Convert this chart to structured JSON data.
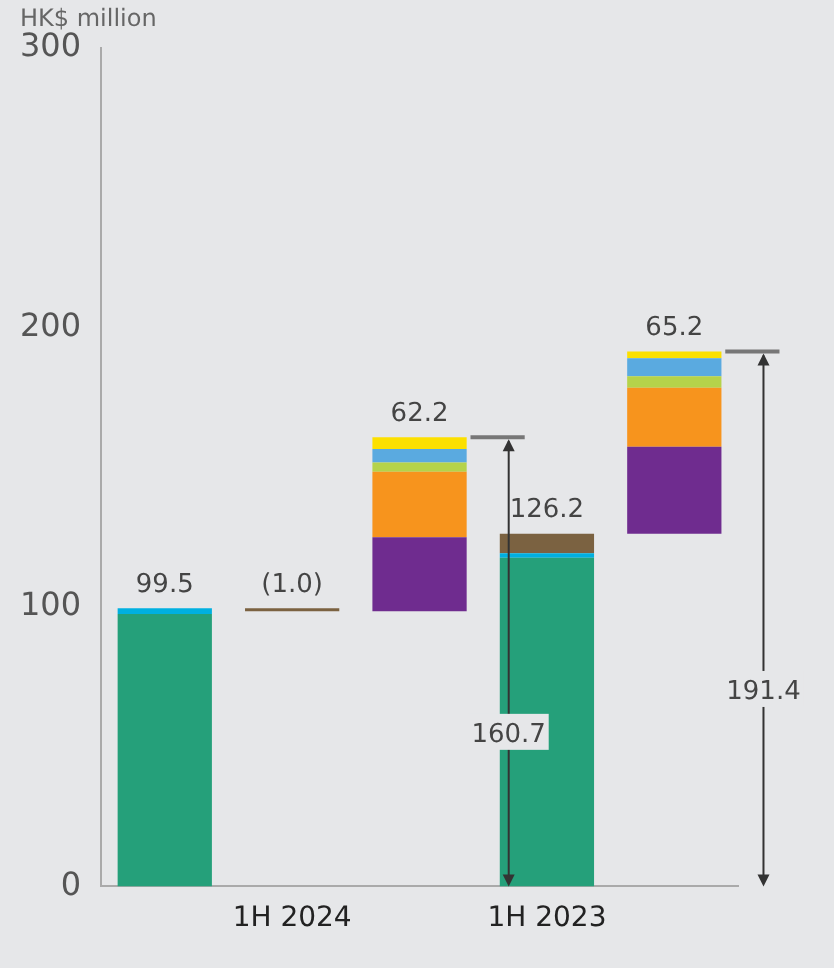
{
  "chart_data": {
    "type": "bar",
    "ylabel": "HK$ million",
    "categories": [
      null,
      "1H 2024",
      null,
      "1H 2023",
      null
    ],
    "series": [
      {
        "color": "#25a07a",
        "values": [
          97.5,
          null,
          null,
          117.6,
          null
        ],
        "base": [
          0,
          null,
          null,
          0,
          null
        ]
      },
      {
        "color": "#00b0e0",
        "values": [
          2.0,
          null,
          null,
          1.6,
          null
        ],
        "base": [
          97.5,
          null,
          null,
          117.6,
          null
        ]
      },
      {
        "color": "#7b6241",
        "values": [
          null,
          -1.0,
          null,
          7.0,
          null
        ],
        "base": [
          null,
          99.5,
          null,
          119.2,
          null
        ]
      },
      {
        "color": "#6f2c8f",
        "values": [
          null,
          null,
          26.4,
          null,
          31.1
        ],
        "base": [
          null,
          null,
          98.5,
          null,
          126.2
        ]
      },
      {
        "color": "#f7941d",
        "values": [
          null,
          null,
          23.5,
          null,
          21.1
        ],
        "base": [
          null,
          null,
          124.9,
          null,
          157.3
        ]
      },
      {
        "color": "#b5d34a",
        "values": [
          null,
          null,
          3.3,
          null,
          4.1
        ],
        "base": [
          null,
          null,
          148.4,
          null,
          178.4
        ]
      },
      {
        "color": "#5aaae0",
        "values": [
          null,
          null,
          4.8,
          null,
          6.5
        ],
        "base": [
          null,
          null,
          151.7,
          null,
          182.5
        ]
      },
      {
        "color": "#fce000",
        "values": [
          null,
          null,
          4.2,
          null,
          2.4
        ],
        "base": [
          null,
          null,
          156.5,
          null,
          189.0
        ]
      }
    ],
    "totals": [
      "99.5",
      "(1.0)",
      "62.2",
      "126.2",
      "65.2"
    ],
    "annotations": [
      "160.7",
      "191.4"
    ],
    "ylim": [
      0,
      300
    ],
    "yticks": [
      0,
      100,
      200,
      300
    ],
    "grid": false,
    "legend": false
  }
}
